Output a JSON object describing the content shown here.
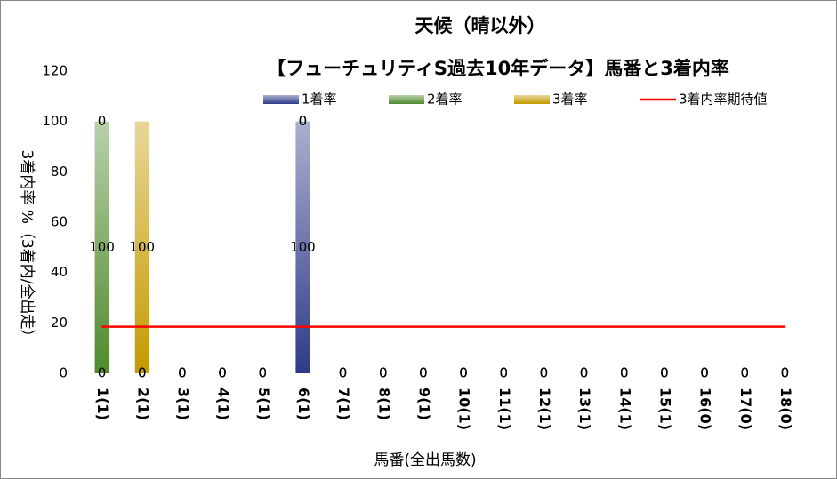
{
  "chart_data": {
    "type": "bar",
    "stacked": true,
    "title": "天候（晴以外）",
    "subtitle": "【フューチュリティS過去10年データ】馬番と3着内率",
    "x_label": "馬番(全出馬数)",
    "y_label": "3着内率 %（3着内/全出走）",
    "categories": [
      "1(1)",
      "2(1)",
      "3(1)",
      "4(1)",
      "5(1)",
      "6(1)",
      "7(1)",
      "8(1)",
      "9(1)",
      "10(1)",
      "11(1)",
      "12(1)",
      "13(1)",
      "14(1)",
      "15(1)",
      "16(0)",
      "17(0)",
      "18(0)"
    ],
    "series": [
      {
        "name": "1着率",
        "color": "#2e3a87",
        "values": [
          0,
          0,
          0,
          0,
          0,
          100,
          0,
          0,
          0,
          0,
          0,
          0,
          0,
          0,
          0,
          0,
          0,
          0
        ]
      },
      {
        "name": "2着率",
        "color": "#4f8a2c",
        "values": [
          100,
          0,
          0,
          0,
          0,
          0,
          0,
          0,
          0,
          0,
          0,
          0,
          0,
          0,
          0,
          0,
          0,
          0
        ]
      },
      {
        "name": "3着率",
        "color": "#c49a00",
        "values": [
          0,
          100,
          0,
          0,
          0,
          0,
          0,
          0,
          0,
          0,
          0,
          0,
          0,
          0,
          0,
          0,
          0,
          0
        ]
      },
      {
        "name": "3着内率期待値",
        "color": "#ff0000",
        "type": "line",
        "values": [
          18.5,
          18.5,
          18.5,
          18.5,
          18.5,
          18.5,
          18.5,
          18.5,
          18.5,
          18.5,
          18.5,
          18.5,
          18.5,
          18.5,
          18.5,
          18.5,
          18.5,
          18.5
        ]
      }
    ],
    "ylim": [
      0,
      120
    ],
    "yticks": [
      0,
      20,
      40,
      60,
      80,
      100,
      120
    ],
    "grid": false,
    "legend": "top"
  }
}
